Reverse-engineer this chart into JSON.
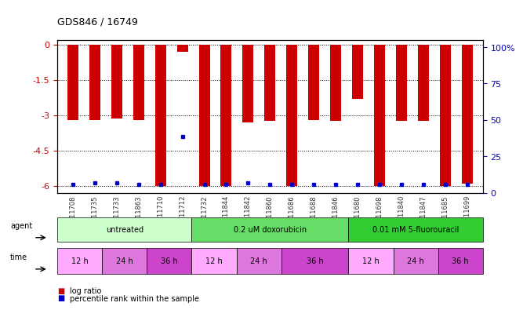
{
  "title": "GDS846 / 16749",
  "samples": [
    "GSM11708",
    "GSM11735",
    "GSM11733",
    "GSM11863",
    "GSM11710",
    "GSM11712",
    "GSM11732",
    "GSM11844",
    "GSM11842",
    "GSM11860",
    "GSM11686",
    "GSM11688",
    "GSM11846",
    "GSM11680",
    "GSM11698",
    "GSM11840",
    "GSM11847",
    "GSM11685",
    "GSM11699"
  ],
  "log_ratios": [
    -3.2,
    -3.2,
    -3.15,
    -3.2,
    -6.0,
    -0.3,
    -6.0,
    -6.0,
    -3.3,
    -3.25,
    -6.0,
    -3.2,
    -3.25,
    -2.3,
    -6.0,
    -3.25,
    -3.25,
    -6.0,
    -5.9
  ],
  "percentile_ranks": [
    1,
    2,
    2,
    1,
    1,
    35,
    1,
    1,
    2,
    1,
    1,
    1,
    1,
    1,
    1,
    1,
    1,
    1,
    1
  ],
  "ylim_left": [
    -6.3,
    0.2
  ],
  "ylim_right": [
    0,
    105
  ],
  "yticks_left": [
    0,
    -1.5,
    -3.0,
    -4.5,
    -6.0
  ],
  "ytick_labels_left": [
    "0",
    "-1.5",
    "-3",
    "-4.5",
    "-6"
  ],
  "yticks_right": [
    0,
    25,
    50,
    75,
    100
  ],
  "ytick_labels_right": [
    "0",
    "25",
    "50",
    "75",
    "100%"
  ],
  "bar_color": "#cc0000",
  "dot_color": "#0000cc",
  "agent_groups": [
    {
      "label": "untreated",
      "start": 0,
      "end": 6,
      "color": "#ccffcc"
    },
    {
      "label": "0.2 uM doxorubicin",
      "start": 6,
      "end": 13,
      "color": "#66dd66"
    },
    {
      "label": "0.01 mM 5-fluorouracil",
      "start": 13,
      "end": 19,
      "color": "#33cc33"
    }
  ],
  "time_groups": [
    {
      "label": "12 h",
      "start": 0,
      "end": 2,
      "color": "#ffaaff"
    },
    {
      "label": "24 h",
      "start": 2,
      "end": 4,
      "color": "#dd77dd"
    },
    {
      "label": "36 h",
      "start": 4,
      "end": 6,
      "color": "#cc44cc"
    },
    {
      "label": "12 h",
      "start": 6,
      "end": 8,
      "color": "#ffaaff"
    },
    {
      "label": "24 h",
      "start": 8,
      "end": 10,
      "color": "#dd77dd"
    },
    {
      "label": "36 h",
      "start": 10,
      "end": 13,
      "color": "#cc44cc"
    },
    {
      "label": "12 h",
      "start": 13,
      "end": 15,
      "color": "#ffaaff"
    },
    {
      "label": "24 h",
      "start": 15,
      "end": 17,
      "color": "#dd77dd"
    },
    {
      "label": "36 h",
      "start": 17,
      "end": 19,
      "color": "#cc44cc"
    }
  ],
  "legend_items": [
    {
      "label": "log ratio",
      "color": "#cc0000"
    },
    {
      "label": "percentile rank within the sample",
      "color": "#0000cc"
    }
  ],
  "grid_color": "black",
  "background_color": "white",
  "left_axis_color": "#cc0000",
  "right_axis_color": "#0000cc"
}
